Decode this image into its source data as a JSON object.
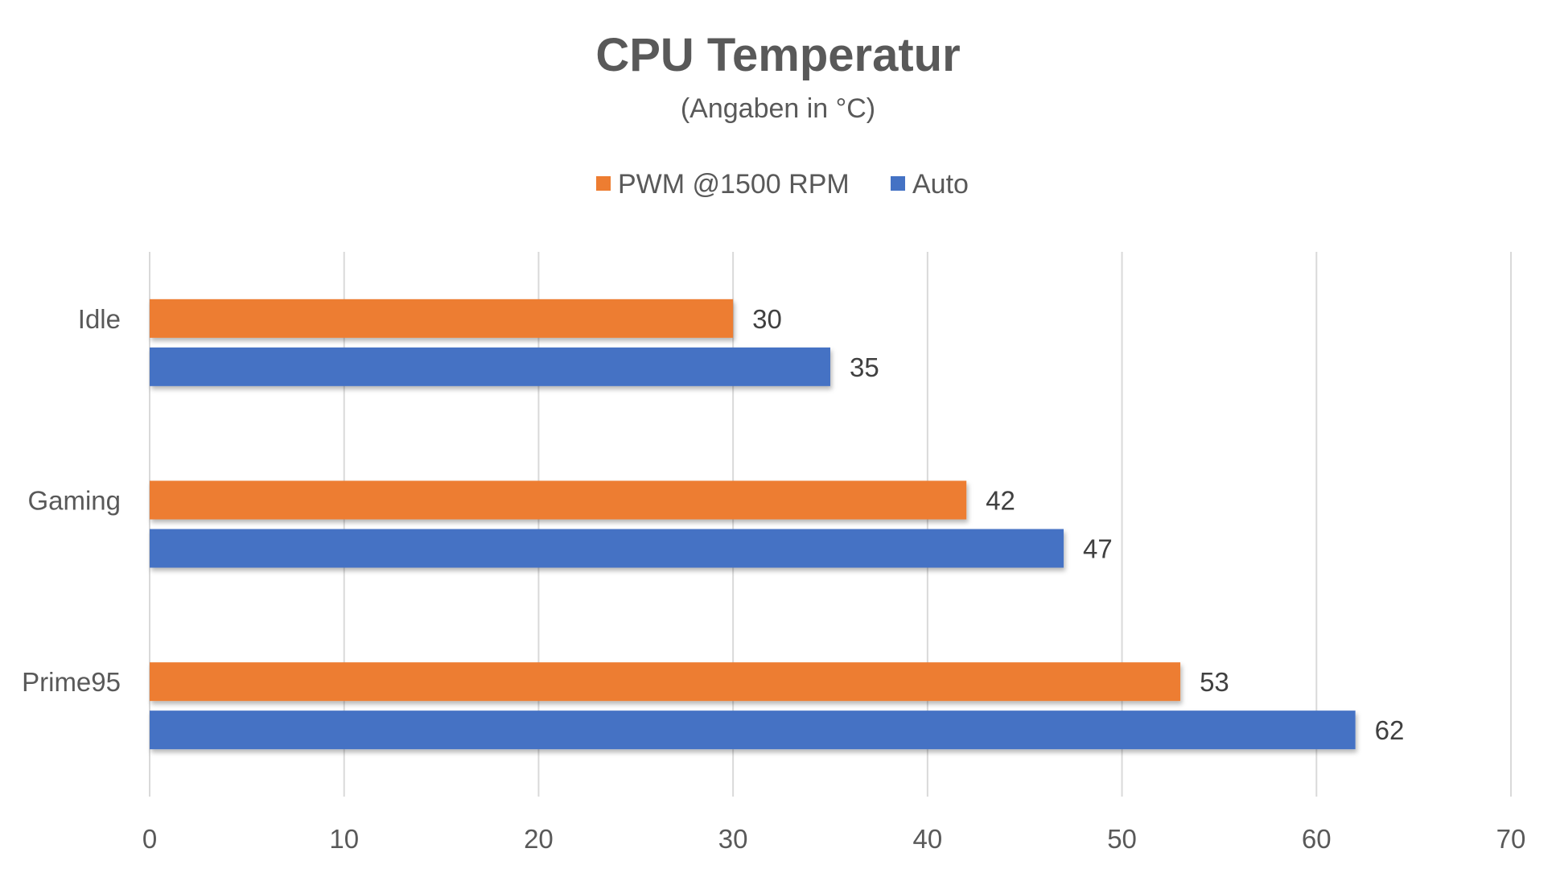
{
  "chart_data": {
    "type": "bar",
    "orientation": "horizontal",
    "title": "CPU Temperatur",
    "subtitle": "(Angaben in °C)",
    "categories": [
      "Idle",
      "Gaming",
      "Prime95"
    ],
    "series": [
      {
        "name": "PWM @1500 RPM",
        "color": "#ED7D31",
        "values": [
          30,
          42,
          53
        ]
      },
      {
        "name": "Auto",
        "color": "#4472C4",
        "values": [
          35,
          47,
          62
        ]
      }
    ],
    "xlim": [
      0,
      70
    ],
    "xticks": [
      0,
      10,
      20,
      30,
      40,
      50,
      60,
      70
    ],
    "grid": true,
    "legend_position": "top",
    "data_labels": true
  }
}
